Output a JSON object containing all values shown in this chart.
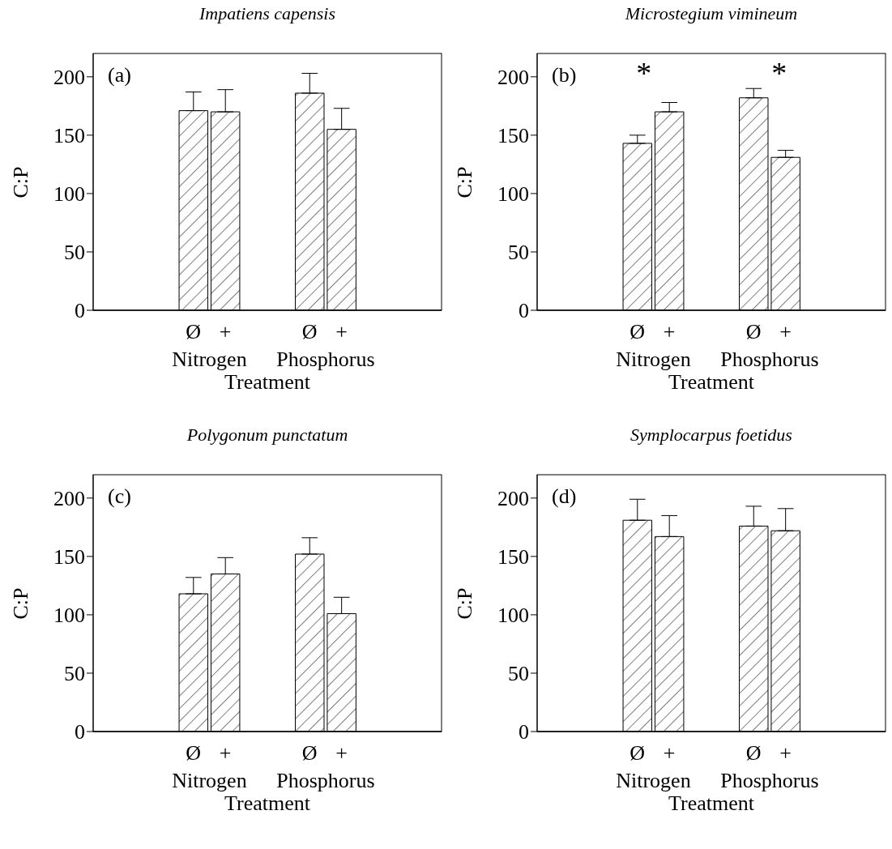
{
  "chart_data": [
    {
      "type": "bar",
      "title": "Impatiens capensis",
      "xlabel": "Treatment",
      "ylabel": "C:P",
      "categories": [
        "Ø",
        "+",
        "Ø",
        "+"
      ],
      "values": [
        171,
        170,
        186,
        155
      ],
      "errors": [
        [
          171,
          187
        ],
        [
          170,
          189
        ],
        [
          186,
          203
        ],
        [
          155,
          173
        ]
      ],
      "color": "#000000",
      "ylim": [
        0,
        220
      ],
      "yticks": [
        0,
        50,
        100,
        150,
        200
      ],
      "annotations": [
        "(a)",
        "Nitrogen",
        "Phosphorus"
      ]
    },
    {
      "type": "bar",
      "title": "Microstegium vimineum",
      "xlabel": "Treatment",
      "ylabel": "C:P",
      "categories": [
        "Ø",
        "+",
        "Ø",
        "+"
      ],
      "values": [
        143,
        170,
        182,
        131
      ],
      "errors": [
        [
          143,
          150
        ],
        [
          170,
          178
        ],
        [
          182,
          190
        ],
        [
          131,
          137
        ]
      ],
      "color": "#000000",
      "ylim": [
        0,
        220
      ],
      "yticks": [
        0,
        50,
        100,
        150,
        200
      ],
      "annotations": [
        "(b)",
        "Nitrogen",
        "Phosphorus",
        "*",
        "*"
      ]
    },
    {
      "type": "bar",
      "title": "Polygonum punctatum",
      "xlabel": "Treatment",
      "ylabel": "C:P",
      "categories": [
        "Ø",
        "+",
        "Ø",
        "+"
      ],
      "values": [
        118,
        135,
        152,
        101
      ],
      "errors": [
        [
          118,
          132
        ],
        [
          135,
          149
        ],
        [
          152,
          166
        ],
        [
          101,
          115
        ]
      ],
      "color": "#000000",
      "ylim": [
        0,
        220
      ],
      "yticks": [
        0,
        50,
        100,
        150,
        200
      ],
      "annotations": [
        "(c)",
        "Nitrogen",
        "Phosphorus"
      ]
    },
    {
      "type": "bar",
      "title": "Symplocarpus foetidus",
      "xlabel": "Treatment",
      "ylabel": "C:P",
      "categories": [
        "Ø",
        "+",
        "Ø",
        "+"
      ],
      "values": [
        181,
        167,
        176,
        172
      ],
      "errors": [
        [
          181,
          199
        ],
        [
          167,
          185
        ],
        [
          176,
          193
        ],
        [
          172,
          191
        ]
      ],
      "color": "#000000",
      "ylim": [
        0,
        220
      ],
      "yticks": [
        0,
        50,
        100,
        150,
        200
      ],
      "annotations": [
        "(d)",
        "Nitrogen",
        "Phosphorus"
      ]
    }
  ]
}
